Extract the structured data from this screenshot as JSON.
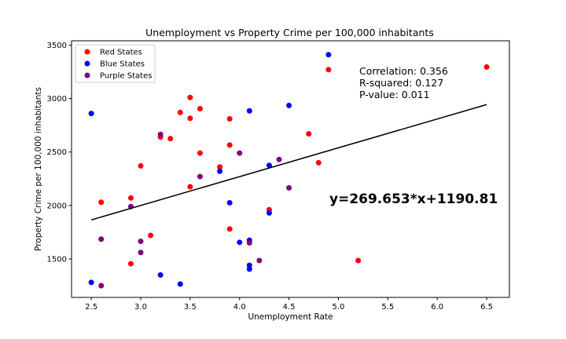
{
  "chart_data": {
    "type": "scatter",
    "title": "Unemployment vs Property Crime per 100,000 inhabitants",
    "xlabel": "Unemployment Rate",
    "ylabel": "Property Crime per 100,000 inhabitants",
    "xlim": [
      2.3,
      6.73
    ],
    "ylim": [
      1140,
      3540
    ],
    "xticks": [
      2.5,
      3.0,
      3.5,
      4.0,
      4.5,
      5.0,
      5.5,
      6.0,
      6.5
    ],
    "xtick_labels": [
      "2.5",
      "3.0",
      "3.5",
      "4.0",
      "4.5",
      "5.0",
      "5.5",
      "6.0",
      "6.5"
    ],
    "yticks": [
      1500,
      2000,
      2500,
      3000,
      3500
    ],
    "ytick_labels": [
      "1500",
      "2000",
      "2500",
      "3000",
      "3500"
    ],
    "grid": false,
    "legend_position": "top-left",
    "series": [
      {
        "name": "Red States",
        "color": "#ff0000",
        "points": [
          [
            2.6,
            2030
          ],
          [
            2.9,
            2070
          ],
          [
            2.9,
            1455
          ],
          [
            3.0,
            2370
          ],
          [
            3.1,
            1720
          ],
          [
            3.2,
            2640
          ],
          [
            3.3,
            2625
          ],
          [
            3.4,
            2870
          ],
          [
            3.5,
            3010
          ],
          [
            3.5,
            2815
          ],
          [
            3.5,
            2175
          ],
          [
            3.6,
            2905
          ],
          [
            3.6,
            2490
          ],
          [
            3.8,
            2360
          ],
          [
            3.9,
            2810
          ],
          [
            3.9,
            2565
          ],
          [
            3.9,
            1780
          ],
          [
            4.3,
            1960
          ],
          [
            4.7,
            2670
          ],
          [
            4.8,
            2400
          ],
          [
            4.9,
            3270
          ],
          [
            5.2,
            1485
          ],
          [
            6.5,
            3295
          ]
        ]
      },
      {
        "name": "Blue States",
        "color": "#0000ff",
        "points": [
          [
            2.5,
            2860
          ],
          [
            2.5,
            1280
          ],
          [
            3.2,
            1350
          ],
          [
            3.4,
            1265
          ],
          [
            3.8,
            2320
          ],
          [
            3.9,
            2025
          ],
          [
            4.0,
            1655
          ],
          [
            4.1,
            2885
          ],
          [
            4.1,
            1675
          ],
          [
            4.1,
            1440
          ],
          [
            4.1,
            1405
          ],
          [
            4.3,
            2375
          ],
          [
            4.3,
            1930
          ],
          [
            4.5,
            2935
          ],
          [
            4.9,
            3410
          ]
        ]
      },
      {
        "name": "Purple States",
        "color": "#800080",
        "points": [
          [
            2.6,
            1685
          ],
          [
            2.6,
            1250
          ],
          [
            2.9,
            1990
          ],
          [
            3.0,
            1665
          ],
          [
            3.0,
            1560
          ],
          [
            3.2,
            2665
          ],
          [
            3.6,
            2270
          ],
          [
            4.0,
            2490
          ],
          [
            4.1,
            1650
          ],
          [
            4.2,
            1485
          ],
          [
            4.4,
            2430
          ],
          [
            4.5,
            2165
          ]
        ]
      }
    ],
    "regression": {
      "slope": 269.653,
      "intercept": 1190.81,
      "x_range": [
        2.5,
        6.5
      ],
      "color": "#000000"
    },
    "annotations": {
      "stats": [
        "Correlation: 0.356",
        "R-squared: 0.127",
        "P-value: 0.011"
      ],
      "equation": "y=269.653*x+1190.81"
    }
  }
}
